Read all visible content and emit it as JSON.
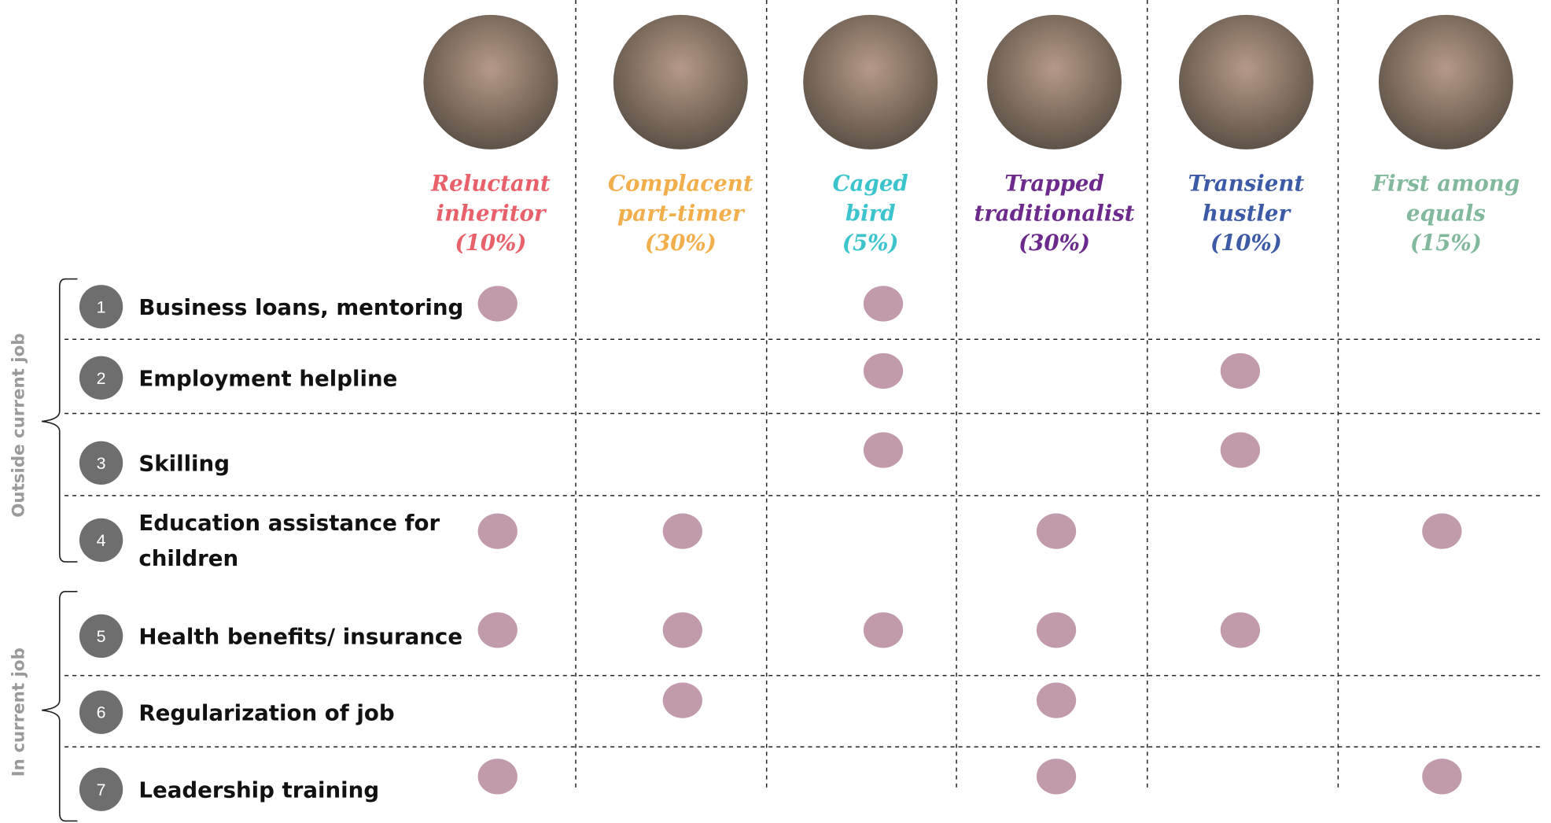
{
  "groups": [
    "Outside current job",
    "In current job"
  ],
  "personas": [
    {
      "lines": [
        "Reluctant",
        "inheritor"
      ],
      "share": "(10%)",
      "color": "#e8606a"
    },
    {
      "lines": [
        "Complacent",
        "part-timer"
      ],
      "share": "(30%)",
      "color": "#f2ae4a"
    },
    {
      "lines": [
        "Caged",
        "bird"
      ],
      "share": "(5%)",
      "color": "#3cc4cc"
    },
    {
      "lines": [
        "Trapped",
        "traditionalist"
      ],
      "share": "(30%)",
      "color": "#6b2a8c"
    },
    {
      "lines": [
        "Transient",
        "hustler"
      ],
      "share": "(10%)",
      "color": "#3c5aa6"
    },
    {
      "lines": [
        "First among",
        "equals"
      ],
      "share": "(15%)",
      "color": "#82b89c"
    }
  ],
  "rows": [
    {
      "number": "1",
      "lines": [
        "Business loans, mentoring"
      ],
      "marks": [
        true,
        false,
        true,
        false,
        false,
        false
      ]
    },
    {
      "number": "2",
      "lines": [
        "Employment helpline"
      ],
      "marks": [
        false,
        false,
        true,
        false,
        true,
        false
      ]
    },
    {
      "number": "3",
      "lines": [
        "Skilling"
      ],
      "marks": [
        false,
        false,
        true,
        false,
        true,
        false
      ]
    },
    {
      "number": "4",
      "lines": [
        "Education assistance for",
        "children"
      ],
      "marks": [
        true,
        true,
        false,
        true,
        false,
        true
      ]
    },
    {
      "number": "5",
      "lines": [
        "Health benefits/ insurance"
      ],
      "marks": [
        true,
        true,
        true,
        true,
        true,
        false
      ]
    },
    {
      "number": "6",
      "lines": [
        "Regularization of job"
      ],
      "marks": [
        false,
        true,
        false,
        true,
        false,
        false
      ]
    },
    {
      "number": "7",
      "lines": [
        "Leadership training"
      ],
      "marks": [
        true,
        false,
        false,
        true,
        false,
        true
      ]
    }
  ]
}
